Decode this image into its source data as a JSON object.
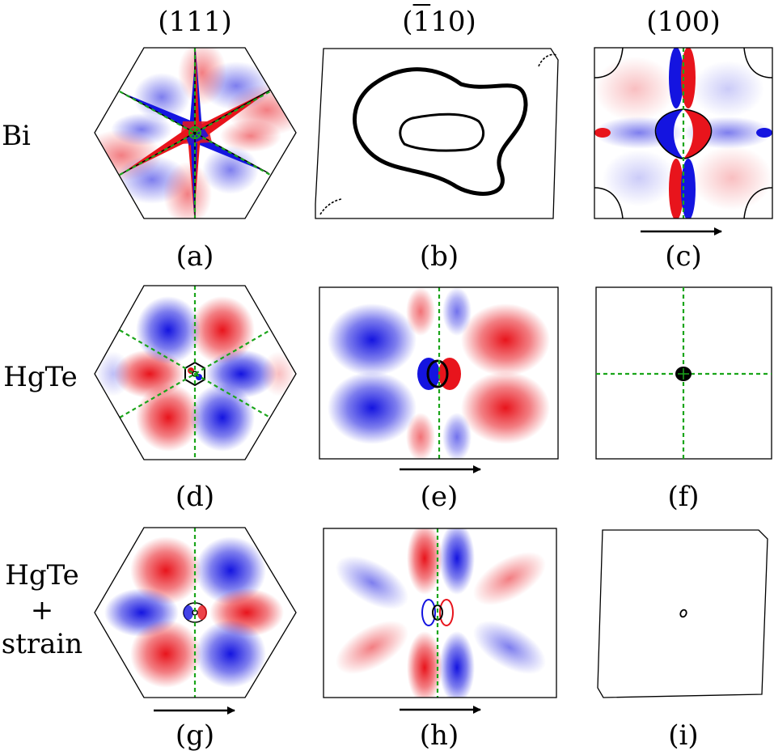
{
  "columns": [
    {
      "pre": "(",
      "bar": "",
      "main": "111",
      "post": ")"
    },
    {
      "pre": "(",
      "bar": "1",
      "main": "10",
      "post": ")"
    },
    {
      "pre": "(",
      "bar": "",
      "main": "100",
      "post": ")"
    }
  ],
  "rows": [
    {
      "lines": [
        "Bi"
      ]
    },
    {
      "lines": [
        "HgTe"
      ]
    },
    {
      "lines": [
        "HgTe",
        "+",
        "strain"
      ]
    }
  ],
  "panels": [
    {
      "caption": "(a)",
      "shape": "hexagon",
      "material": "Bi",
      "surface": "(111)",
      "pattern": "six-arm star, red/blue",
      "arrow": false
    },
    {
      "caption": "(b)",
      "shape": "skewed-rectangle",
      "material": "Bi",
      "surface": "(-110)",
      "pattern": "closed contours only",
      "arrow": false
    },
    {
      "caption": "(c)",
      "shape": "square",
      "material": "Bi",
      "surface": "(100)",
      "pattern": "central pocket and corner arcs",
      "arrow": true
    },
    {
      "caption": "(d)",
      "shape": "hexagon",
      "material": "HgTe",
      "surface": "(111)",
      "pattern": "six-lobe red/blue",
      "arrow": false
    },
    {
      "caption": "(e)",
      "shape": "rectangle",
      "material": "HgTe",
      "surface": "(-110)",
      "pattern": "four-quadrant red/blue",
      "arrow": true
    },
    {
      "caption": "(f)",
      "shape": "square",
      "material": "HgTe",
      "surface": "(100)",
      "pattern": "small black dot",
      "arrow": false
    },
    {
      "caption": "(g)",
      "shape": "hexagon",
      "material": "HgTe+strain",
      "surface": "(111)",
      "pattern": "six-lobe red/blue",
      "arrow": true
    },
    {
      "caption": "(h)",
      "shape": "rectangle",
      "material": "HgTe+strain",
      "surface": "(-110)",
      "pattern": "radial red/blue sectors",
      "arrow": true
    },
    {
      "caption": "(i)",
      "shape": "skewed-square",
      "material": "HgTe+strain",
      "surface": "(100)",
      "pattern": "tiny contour",
      "arrow": false
    }
  ],
  "colors": {
    "positive": "#e8141c",
    "negative": "#1414e0",
    "guide": "#1aa51a",
    "outline": "#000000"
  }
}
